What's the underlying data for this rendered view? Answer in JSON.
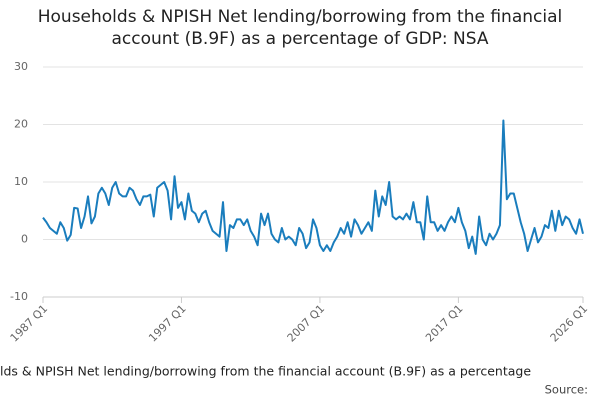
{
  "chart_data": {
    "type": "line",
    "title": "Households & NPISH Net lending/borrowing from the financial account (B.9F) as a percentage of GDP: NSA",
    "x_label": "lds & NPISH Net lending/borrowing from the financial account (B.9F) as a percentage",
    "source": "Source:",
    "color": "#1a7dbd",
    "grid": true,
    "ylim": [
      -10,
      30
    ],
    "yticks": [
      -10,
      0,
      10,
      20,
      30
    ],
    "categories": [
      "1987 Q1",
      null,
      null,
      null,
      null,
      null,
      null,
      null,
      null,
      null,
      null,
      null,
      null,
      null,
      null,
      null,
      null,
      null,
      null,
      null,
      null,
      null,
      null,
      null,
      null,
      null,
      null,
      null,
      null,
      null,
      null,
      null,
      null,
      null,
      null,
      null,
      null,
      null,
      null,
      null,
      "1997 Q1",
      null,
      null,
      null,
      null,
      null,
      null,
      null,
      null,
      null,
      null,
      null,
      null,
      null,
      null,
      null,
      null,
      null,
      null,
      null,
      null,
      null,
      null,
      null,
      null,
      null,
      null,
      null,
      null,
      null,
      null,
      null,
      null,
      null,
      null,
      null,
      null,
      null,
      null,
      null,
      "2007 Q1",
      null,
      null,
      null,
      null,
      null,
      null,
      null,
      null,
      null,
      null,
      null,
      null,
      null,
      null,
      null,
      null,
      null,
      null,
      null,
      null,
      null,
      null,
      null,
      null,
      null,
      null,
      null,
      null,
      null,
      null,
      null,
      null,
      null,
      null,
      null,
      null,
      null,
      null,
      null,
      "2017 Q1",
      null,
      null,
      null,
      null,
      null,
      null,
      null,
      null,
      null,
      null,
      null,
      null,
      null,
      null,
      null,
      null,
      null,
      null,
      null,
      null,
      null,
      null,
      null,
      null,
      null,
      null,
      null,
      null,
      null,
      null,
      null,
      null,
      null,
      null,
      null,
      "2026 Q1"
    ],
    "values": [
      3.8,
      3,
      2,
      1.5,
      1,
      3,
      2,
      -0.2,
      0.8,
      5.5,
      5.4,
      2,
      4,
      7.5,
      2.8,
      4,
      8,
      9,
      8,
      6,
      9,
      10,
      8,
      7.5,
      7.5,
      9,
      8.5,
      7,
      6,
      7.5,
      7.5,
      7.8,
      4,
      9,
      9.5,
      10,
      8.5,
      3.5,
      11,
      5.5,
      6.5,
      3.5,
      8,
      5,
      4.5,
      3,
      4.5,
      5,
      3,
      1.5,
      1,
      0.5,
      6.5,
      -2,
      2.5,
      2,
      3.5,
      3.5,
      2.5,
      3.5,
      1.5,
      0.5,
      -1,
      4.5,
      2.5,
      4.5,
      1,
      0,
      -0.5,
      2,
      0,
      0.5,
      0,
      -1,
      2,
      1,
      -1.5,
      -0.5,
      3.5,
      2,
      -1,
      -2,
      -1,
      -2,
      -0.5,
      0.5,
      2,
      1,
      3,
      0.5,
      3.5,
      2.5,
      1,
      2,
      3,
      1.5,
      8.5,
      4,
      7.5,
      6,
      10,
      4,
      3.5,
      4,
      3.5,
      4.5,
      3.5,
      6.5,
      3,
      3,
      0,
      7.5,
      3,
      3,
      1.5,
      2.5,
      1.5,
      3,
      4,
      3,
      5.5,
      3,
      1.5,
      -1.5,
      0.5,
      -2.5,
      4,
      0,
      -1,
      1,
      0,
      1,
      2.5,
      20.7,
      7,
      8,
      8,
      5.5,
      3,
      1,
      -2,
      0,
      2,
      -0.5,
      0.5,
      2.5,
      2,
      5,
      1.5,
      5,
      2.5,
      4,
      3.5,
      2,
      1,
      3.5,
      1
    ]
  }
}
